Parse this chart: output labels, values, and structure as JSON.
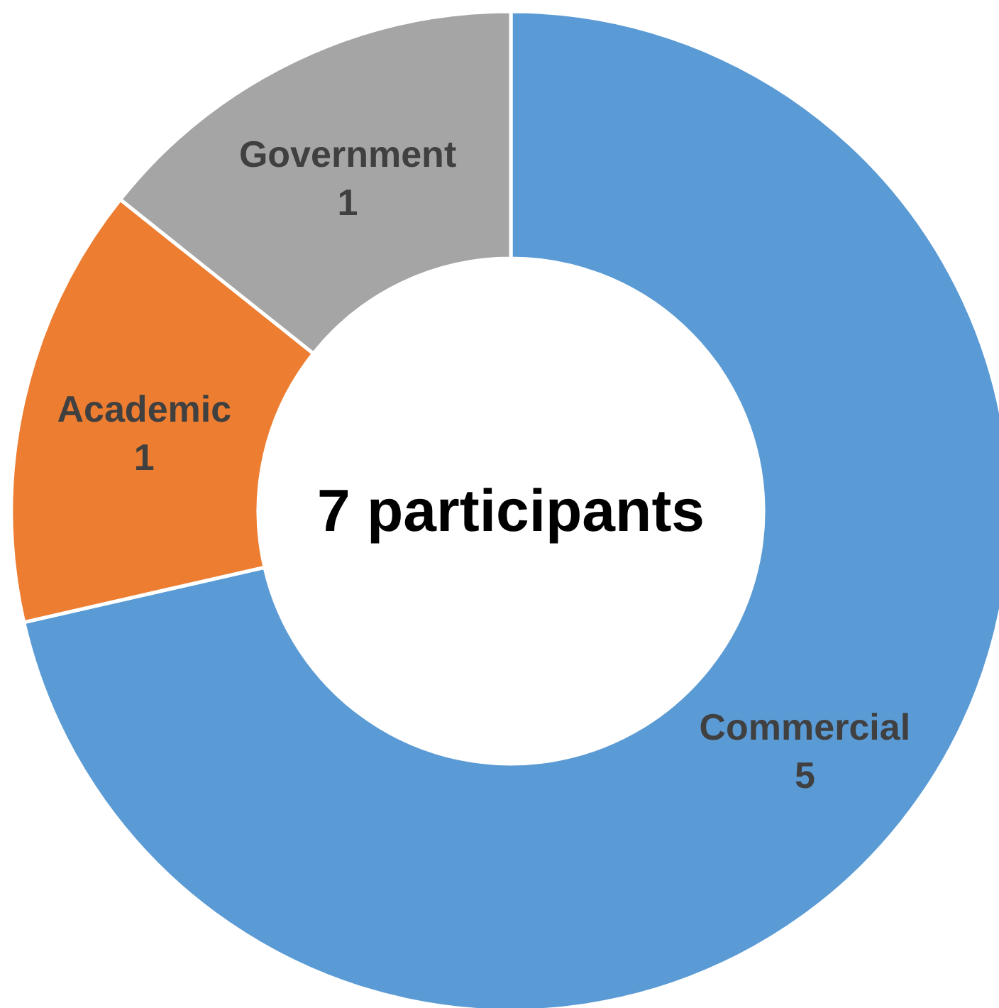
{
  "chart_data": {
    "type": "donut",
    "title": "7 participants",
    "categories": [
      "Commercial",
      "Academic",
      "Government"
    ],
    "values": [
      5,
      1,
      1
    ],
    "colors": [
      "#5b9bd5",
      "#ed7d31",
      "#a5a5a5"
    ],
    "data_labels": true
  }
}
